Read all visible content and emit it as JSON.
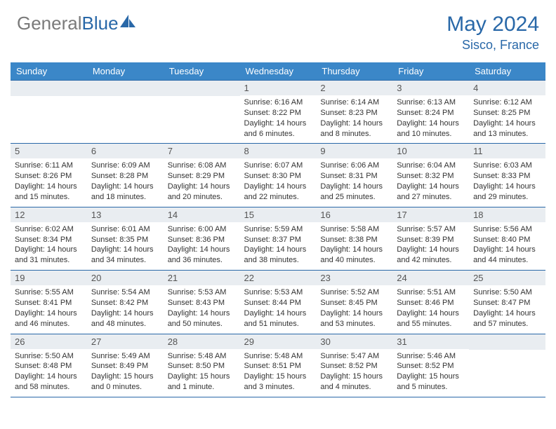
{
  "brand": {
    "part1": "General",
    "part2": "Blue"
  },
  "header": {
    "month_title": "May 2024",
    "location": "Sisco, France"
  },
  "colors": {
    "accent": "#2968a8",
    "header_row": "#3b87c8",
    "daynum_bg": "#e9edf1",
    "text": "#333333",
    "logo_gray": "#7a7a7a",
    "white": "#ffffff"
  },
  "calendar": {
    "day_names": [
      "Sunday",
      "Monday",
      "Tuesday",
      "Wednesday",
      "Thursday",
      "Friday",
      "Saturday"
    ],
    "first_day_col": 3,
    "days": [
      {
        "n": 1,
        "sunrise": "6:16 AM",
        "sunset": "8:22 PM",
        "daylight": "14 hours and 6 minutes."
      },
      {
        "n": 2,
        "sunrise": "6:14 AM",
        "sunset": "8:23 PM",
        "daylight": "14 hours and 8 minutes."
      },
      {
        "n": 3,
        "sunrise": "6:13 AM",
        "sunset": "8:24 PM",
        "daylight": "14 hours and 10 minutes."
      },
      {
        "n": 4,
        "sunrise": "6:12 AM",
        "sunset": "8:25 PM",
        "daylight": "14 hours and 13 minutes."
      },
      {
        "n": 5,
        "sunrise": "6:11 AM",
        "sunset": "8:26 PM",
        "daylight": "14 hours and 15 minutes."
      },
      {
        "n": 6,
        "sunrise": "6:09 AM",
        "sunset": "8:28 PM",
        "daylight": "14 hours and 18 minutes."
      },
      {
        "n": 7,
        "sunrise": "6:08 AM",
        "sunset": "8:29 PM",
        "daylight": "14 hours and 20 minutes."
      },
      {
        "n": 8,
        "sunrise": "6:07 AM",
        "sunset": "8:30 PM",
        "daylight": "14 hours and 22 minutes."
      },
      {
        "n": 9,
        "sunrise": "6:06 AM",
        "sunset": "8:31 PM",
        "daylight": "14 hours and 25 minutes."
      },
      {
        "n": 10,
        "sunrise": "6:04 AM",
        "sunset": "8:32 PM",
        "daylight": "14 hours and 27 minutes."
      },
      {
        "n": 11,
        "sunrise": "6:03 AM",
        "sunset": "8:33 PM",
        "daylight": "14 hours and 29 minutes."
      },
      {
        "n": 12,
        "sunrise": "6:02 AM",
        "sunset": "8:34 PM",
        "daylight": "14 hours and 31 minutes."
      },
      {
        "n": 13,
        "sunrise": "6:01 AM",
        "sunset": "8:35 PM",
        "daylight": "14 hours and 34 minutes."
      },
      {
        "n": 14,
        "sunrise": "6:00 AM",
        "sunset": "8:36 PM",
        "daylight": "14 hours and 36 minutes."
      },
      {
        "n": 15,
        "sunrise": "5:59 AM",
        "sunset": "8:37 PM",
        "daylight": "14 hours and 38 minutes."
      },
      {
        "n": 16,
        "sunrise": "5:58 AM",
        "sunset": "8:38 PM",
        "daylight": "14 hours and 40 minutes."
      },
      {
        "n": 17,
        "sunrise": "5:57 AM",
        "sunset": "8:39 PM",
        "daylight": "14 hours and 42 minutes."
      },
      {
        "n": 18,
        "sunrise": "5:56 AM",
        "sunset": "8:40 PM",
        "daylight": "14 hours and 44 minutes."
      },
      {
        "n": 19,
        "sunrise": "5:55 AM",
        "sunset": "8:41 PM",
        "daylight": "14 hours and 46 minutes."
      },
      {
        "n": 20,
        "sunrise": "5:54 AM",
        "sunset": "8:42 PM",
        "daylight": "14 hours and 48 minutes."
      },
      {
        "n": 21,
        "sunrise": "5:53 AM",
        "sunset": "8:43 PM",
        "daylight": "14 hours and 50 minutes."
      },
      {
        "n": 22,
        "sunrise": "5:53 AM",
        "sunset": "8:44 PM",
        "daylight": "14 hours and 51 minutes."
      },
      {
        "n": 23,
        "sunrise": "5:52 AM",
        "sunset": "8:45 PM",
        "daylight": "14 hours and 53 minutes."
      },
      {
        "n": 24,
        "sunrise": "5:51 AM",
        "sunset": "8:46 PM",
        "daylight": "14 hours and 55 minutes."
      },
      {
        "n": 25,
        "sunrise": "5:50 AM",
        "sunset": "8:47 PM",
        "daylight": "14 hours and 57 minutes."
      },
      {
        "n": 26,
        "sunrise": "5:50 AM",
        "sunset": "8:48 PM",
        "daylight": "14 hours and 58 minutes."
      },
      {
        "n": 27,
        "sunrise": "5:49 AM",
        "sunset": "8:49 PM",
        "daylight": "15 hours and 0 minutes."
      },
      {
        "n": 28,
        "sunrise": "5:48 AM",
        "sunset": "8:50 PM",
        "daylight": "15 hours and 1 minute."
      },
      {
        "n": 29,
        "sunrise": "5:48 AM",
        "sunset": "8:51 PM",
        "daylight": "15 hours and 3 minutes."
      },
      {
        "n": 30,
        "sunrise": "5:47 AM",
        "sunset": "8:52 PM",
        "daylight": "15 hours and 4 minutes."
      },
      {
        "n": 31,
        "sunrise": "5:46 AM",
        "sunset": "8:52 PM",
        "daylight": "15 hours and 5 minutes."
      }
    ],
    "labels": {
      "sunrise": "Sunrise:",
      "sunset": "Sunset:",
      "daylight": "Daylight:"
    }
  }
}
